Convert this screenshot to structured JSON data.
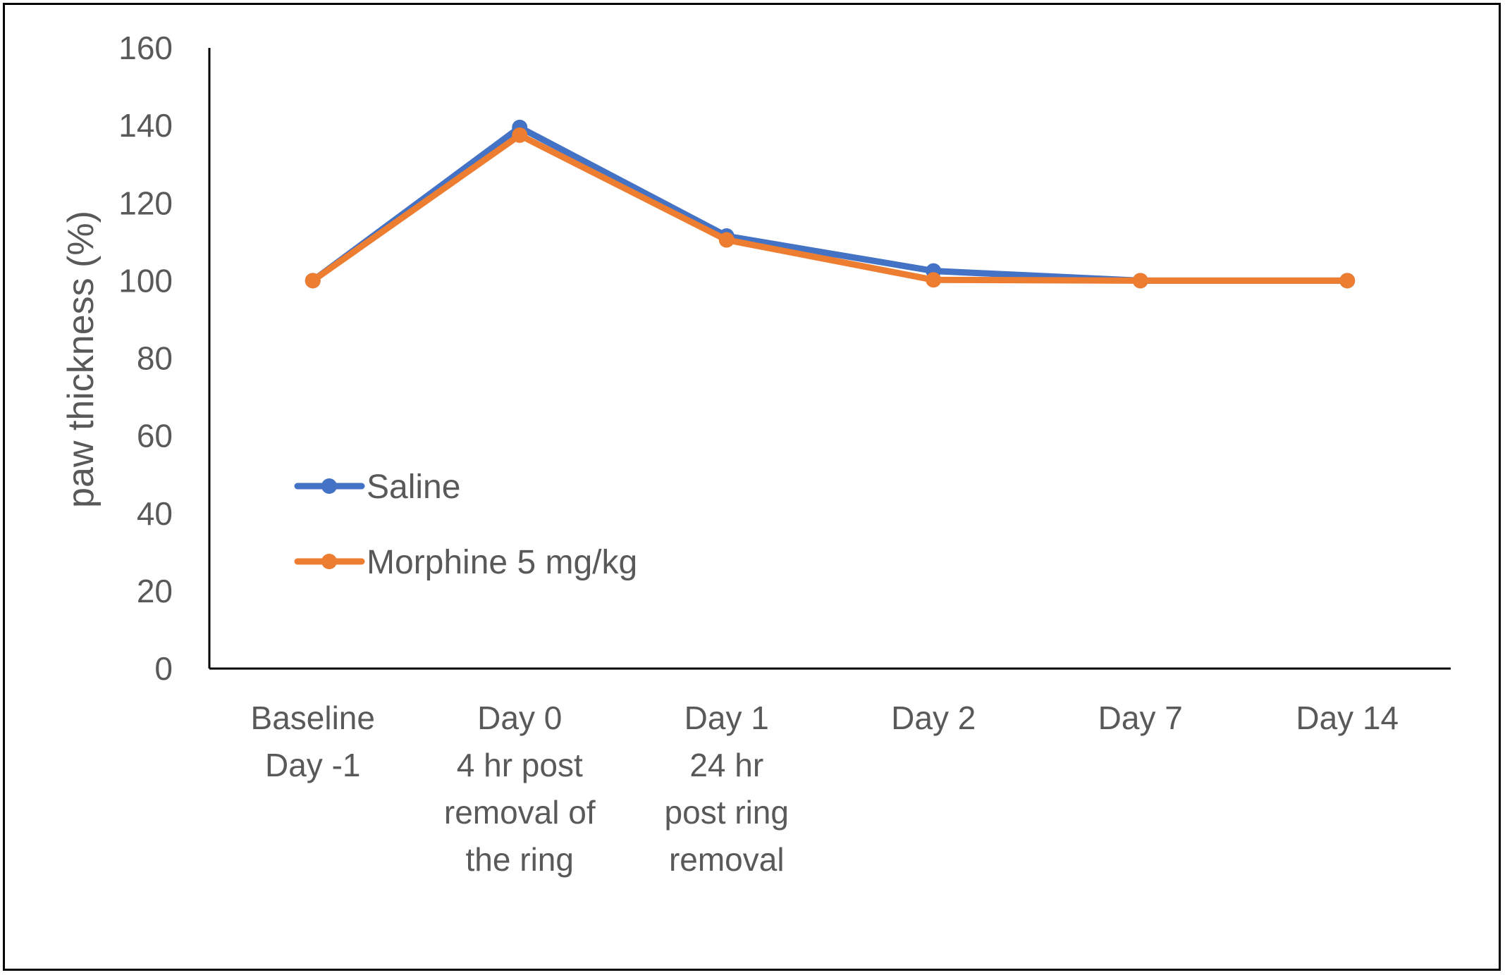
{
  "chart_data": {
    "type": "line",
    "title": "",
    "xlabel": "",
    "ylabel": "paw thickness (%)",
    "ylim": [
      0,
      160
    ],
    "yticks": [
      "0",
      "20",
      "40",
      "60",
      "80",
      "100",
      "120",
      "140",
      "160"
    ],
    "grid": false,
    "legend_position": "center-left",
    "categories": [
      [
        "Baseline",
        "Day -1"
      ],
      [
        "Day 0",
        "4 hr post",
        "removal of",
        "the ring"
      ],
      [
        "Day 1",
        "24 hr",
        "post ring",
        "removal"
      ],
      [
        "Day 2"
      ],
      [
        "Day 7"
      ],
      [
        "Day 14"
      ]
    ],
    "series": [
      {
        "name": "Saline",
        "color": "#4472C4",
        "values": [
          100,
          139.5,
          111.5,
          102.5,
          100,
          100
        ]
      },
      {
        "name": "Morphine 5 mg/kg",
        "color": "#ED7D31",
        "values": [
          100,
          137.5,
          110.5,
          100.2,
          100,
          100
        ]
      }
    ]
  }
}
